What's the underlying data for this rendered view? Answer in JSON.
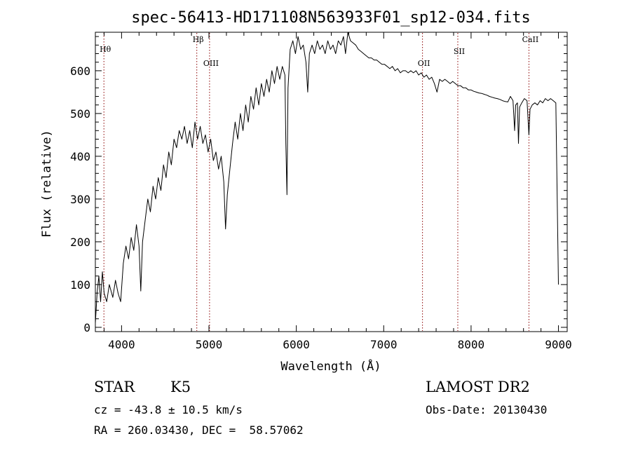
{
  "chart_data": {
    "type": "line",
    "title": "spec-56413-HD171108N563933F01_sp12-034.fits",
    "xlabel": "Wavelength (Å)",
    "ylabel": "Flux (relative)",
    "xlim": [
      3700,
      9100
    ],
    "ylim": [
      -10,
      690
    ],
    "x_ticks": [
      4000,
      5000,
      6000,
      7000,
      8000,
      9000
    ],
    "x_tick_labels": [
      "4000",
      "5000",
      "6000",
      "7000",
      "8000",
      "9000"
    ],
    "y_ticks": [
      0,
      100,
      200,
      300,
      400,
      500,
      600
    ],
    "y_tick_labels": [
      "0",
      "100",
      "200",
      "300",
      "400",
      "500",
      "600"
    ],
    "grid": false,
    "series_color": "#000000",
    "line_marker_color": "#8b0000",
    "line_markers": [
      {
        "label": "Hθ",
        "x": 3798
      },
      {
        "label": "Hβ",
        "x": 4861
      },
      {
        "label": "OIII",
        "x": 5007
      },
      {
        "label": "OII",
        "x": 7444
      },
      {
        "label": "SII",
        "x": 7848
      },
      {
        "label": "CaII",
        "x": 8662
      }
    ],
    "series": [
      {
        "values": [
          [
            3700,
            10
          ],
          [
            3720,
            80
          ],
          [
            3740,
            120
          ],
          [
            3760,
            60
          ],
          [
            3780,
            130
          ],
          [
            3800,
            80
          ],
          [
            3830,
            60
          ],
          [
            3860,
            100
          ],
          [
            3900,
            70
          ],
          [
            3930,
            110
          ],
          [
            3960,
            80
          ],
          [
            3990,
            60
          ],
          [
            4020,
            150
          ],
          [
            4050,
            190
          ],
          [
            4080,
            160
          ],
          [
            4110,
            210
          ],
          [
            4140,
            180
          ],
          [
            4170,
            240
          ],
          [
            4200,
            190
          ],
          [
            4220,
            85
          ],
          [
            4240,
            200
          ],
          [
            4270,
            250
          ],
          [
            4300,
            300
          ],
          [
            4330,
            270
          ],
          [
            4360,
            330
          ],
          [
            4390,
            300
          ],
          [
            4420,
            350
          ],
          [
            4450,
            320
          ],
          [
            4480,
            380
          ],
          [
            4510,
            350
          ],
          [
            4540,
            410
          ],
          [
            4570,
            380
          ],
          [
            4600,
            440
          ],
          [
            4630,
            420
          ],
          [
            4660,
            460
          ],
          [
            4690,
            440
          ],
          [
            4720,
            470
          ],
          [
            4750,
            430
          ],
          [
            4780,
            460
          ],
          [
            4810,
            420
          ],
          [
            4840,
            480
          ],
          [
            4870,
            440
          ],
          [
            4900,
            470
          ],
          [
            4930,
            430
          ],
          [
            4960,
            450
          ],
          [
            4990,
            410
          ],
          [
            5020,
            440
          ],
          [
            5050,
            390
          ],
          [
            5080,
            410
          ],
          [
            5110,
            370
          ],
          [
            5140,
            400
          ],
          [
            5170,
            340
          ],
          [
            5190,
            230
          ],
          [
            5210,
            310
          ],
          [
            5240,
            370
          ],
          [
            5270,
            430
          ],
          [
            5300,
            480
          ],
          [
            5330,
            440
          ],
          [
            5360,
            500
          ],
          [
            5390,
            460
          ],
          [
            5420,
            520
          ],
          [
            5450,
            480
          ],
          [
            5480,
            540
          ],
          [
            5510,
            510
          ],
          [
            5540,
            560
          ],
          [
            5570,
            520
          ],
          [
            5600,
            570
          ],
          [
            5630,
            540
          ],
          [
            5660,
            580
          ],
          [
            5690,
            550
          ],
          [
            5720,
            600
          ],
          [
            5750,
            570
          ],
          [
            5780,
            610
          ],
          [
            5810,
            580
          ],
          [
            5840,
            610
          ],
          [
            5870,
            590
          ],
          [
            5880,
            430
          ],
          [
            5893,
            310
          ],
          [
            5905,
            560
          ],
          [
            5930,
            650
          ],
          [
            5960,
            670
          ],
          [
            5990,
            640
          ],
          [
            6020,
            680
          ],
          [
            6050,
            650
          ],
          [
            6080,
            660
          ],
          [
            6110,
            620
          ],
          [
            6130,
            550
          ],
          [
            6150,
            640
          ],
          [
            6180,
            660
          ],
          [
            6210,
            640
          ],
          [
            6240,
            670
          ],
          [
            6270,
            650
          ],
          [
            6300,
            660
          ],
          [
            6330,
            640
          ],
          [
            6360,
            670
          ],
          [
            6390,
            650
          ],
          [
            6420,
            660
          ],
          [
            6450,
            640
          ],
          [
            6480,
            670
          ],
          [
            6510,
            660
          ],
          [
            6540,
            680
          ],
          [
            6563,
            640
          ],
          [
            6590,
            690
          ],
          [
            6620,
            670
          ],
          [
            6650,
            665
          ],
          [
            6680,
            660
          ],
          [
            6710,
            650
          ],
          [
            6740,
            645
          ],
          [
            6770,
            640
          ],
          [
            6800,
            635
          ],
          [
            6830,
            630
          ],
          [
            6860,
            630
          ],
          [
            6890,
            625
          ],
          [
            6920,
            625
          ],
          [
            6950,
            620
          ],
          [
            6980,
            615
          ],
          [
            7010,
            615
          ],
          [
            7040,
            610
          ],
          [
            7070,
            605
          ],
          [
            7100,
            610
          ],
          [
            7130,
            600
          ],
          [
            7160,
            605
          ],
          [
            7190,
            595
          ],
          [
            7220,
            600
          ],
          [
            7250,
            600
          ],
          [
            7280,
            595
          ],
          [
            7310,
            600
          ],
          [
            7340,
            595
          ],
          [
            7370,
            600
          ],
          [
            7400,
            590
          ],
          [
            7430,
            595
          ],
          [
            7460,
            585
          ],
          [
            7490,
            590
          ],
          [
            7520,
            580
          ],
          [
            7550,
            585
          ],
          [
            7580,
            570
          ],
          [
            7610,
            550
          ],
          [
            7640,
            580
          ],
          [
            7670,
            575
          ],
          [
            7700,
            580
          ],
          [
            7730,
            575
          ],
          [
            7760,
            570
          ],
          [
            7790,
            575
          ],
          [
            7820,
            570
          ],
          [
            7850,
            565
          ],
          [
            7880,
            565
          ],
          [
            7910,
            560
          ],
          [
            7940,
            560
          ],
          [
            7970,
            555
          ],
          [
            8000,
            555
          ],
          [
            8030,
            552
          ],
          [
            8060,
            550
          ],
          [
            8090,
            548
          ],
          [
            8120,
            547
          ],
          [
            8150,
            545
          ],
          [
            8180,
            543
          ],
          [
            8210,
            540
          ],
          [
            8240,
            538
          ],
          [
            8270,
            536
          ],
          [
            8300,
            535
          ],
          [
            8330,
            533
          ],
          [
            8360,
            530
          ],
          [
            8390,
            528
          ],
          [
            8420,
            527
          ],
          [
            8450,
            540
          ],
          [
            8480,
            530
          ],
          [
            8498,
            460
          ],
          [
            8510,
            520
          ],
          [
            8530,
            525
          ],
          [
            8542,
            430
          ],
          [
            8555,
            515
          ],
          [
            8580,
            525
          ],
          [
            8610,
            535
          ],
          [
            8640,
            530
          ],
          [
            8662,
            450
          ],
          [
            8675,
            510
          ],
          [
            8700,
            520
          ],
          [
            8730,
            525
          ],
          [
            8760,
            520
          ],
          [
            8790,
            530
          ],
          [
            8820,
            525
          ],
          [
            8850,
            535
          ],
          [
            8880,
            530
          ],
          [
            8910,
            535
          ],
          [
            8940,
            530
          ],
          [
            8970,
            525
          ],
          [
            9000,
            100
          ]
        ]
      }
    ]
  },
  "info": {
    "object_class": "STAR",
    "subclass": "K5",
    "survey": "LAMOST DR2",
    "redshift_line": "cz = -43.8 ± 10.5 km/s",
    "obs_date": "Obs-Date: 20130430",
    "coords": "RA = 260.03430, DEC =  58.57062"
  }
}
